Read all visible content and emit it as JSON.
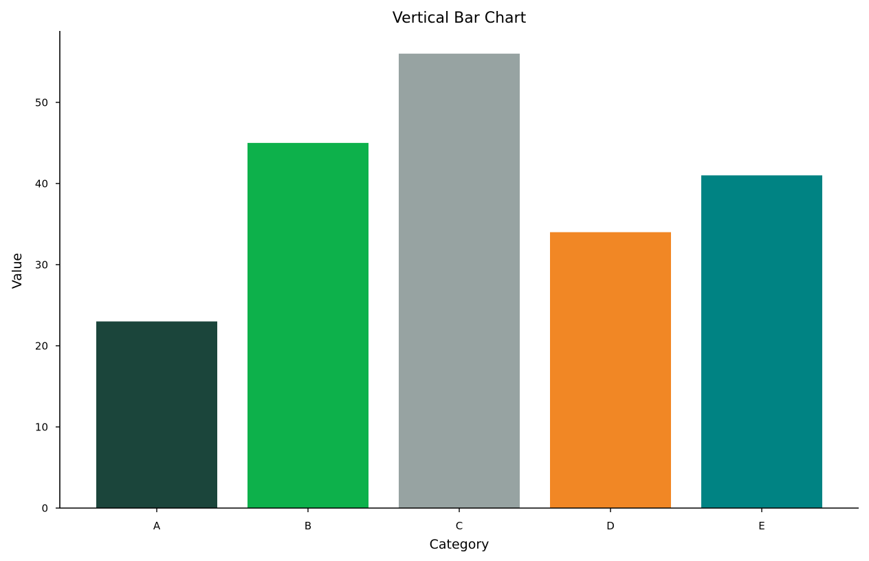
{
  "chart_data": {
    "type": "bar",
    "title": "Vertical Bar Chart",
    "xlabel": "Category",
    "ylabel": "Value",
    "categories": [
      "A",
      "B",
      "C",
      "D",
      "E"
    ],
    "values": [
      23,
      45,
      56,
      34,
      41
    ],
    "colors": [
      "#1b453b",
      "#0db14b",
      "#97a3a2",
      "#f18725",
      "#008383"
    ],
    "ylim": [
      0,
      58.8
    ],
    "yticks": [
      0,
      10,
      20,
      30,
      40,
      50
    ],
    "ytick_labels": [
      "0",
      "10",
      "20",
      "30",
      "40",
      "50"
    ],
    "grid": false,
    "legend": "none"
  }
}
